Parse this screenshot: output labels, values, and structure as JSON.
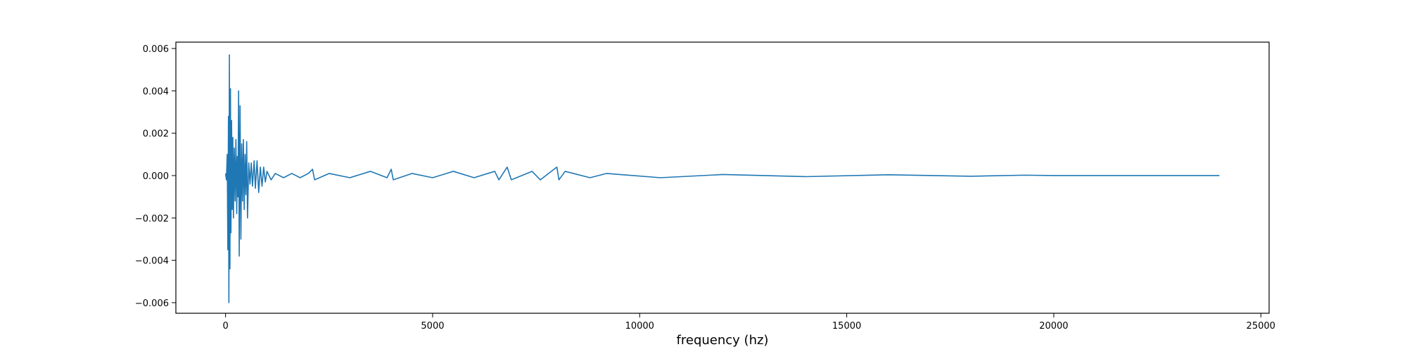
{
  "chart_data": {
    "type": "line",
    "title": "",
    "xlabel": "frequency (hz)",
    "ylabel": "",
    "xlim": [
      -1200,
      25200
    ],
    "ylim": [
      -0.0065,
      0.0063
    ],
    "xticks": [
      0,
      5000,
      10000,
      15000,
      20000,
      25000
    ],
    "xtick_labels": [
      "0",
      "5000",
      "10000",
      "15000",
      "20000",
      "25000"
    ],
    "yticks": [
      -0.006,
      -0.004,
      -0.002,
      0.0,
      0.002,
      0.004,
      0.006
    ],
    "ytick_labels": [
      "−0.006",
      "−0.004",
      "−0.002",
      "0.000",
      "0.002",
      "0.004",
      "0.006"
    ],
    "grid": false,
    "legend": "none",
    "series": [
      {
        "color": "#1f77b4",
        "peaks": [
          [
            0,
            0.0001
          ],
          [
            20,
            -0.0002
          ],
          [
            40,
            0.001
          ],
          [
            55,
            -0.0035
          ],
          [
            70,
            0.0028
          ],
          [
            80,
            -0.006
          ],
          [
            92,
            0.0057
          ],
          [
            105,
            -0.0044
          ],
          [
            118,
            0.0041
          ],
          [
            130,
            -0.0027
          ],
          [
            145,
            0.0026
          ],
          [
            160,
            -0.0016
          ],
          [
            175,
            0.0018
          ],
          [
            190,
            -0.002
          ],
          [
            210,
            0.0013
          ],
          [
            230,
            -0.0012
          ],
          [
            250,
            0.0017
          ],
          [
            270,
            -0.0018
          ],
          [
            285,
            0.0009
          ],
          [
            300,
            -0.001
          ],
          [
            315,
            0.004
          ],
          [
            330,
            -0.0038
          ],
          [
            350,
            0.0033
          ],
          [
            370,
            -0.003
          ],
          [
            390,
            0.0015
          ],
          [
            410,
            -0.0012
          ],
          [
            430,
            0.0017
          ],
          [
            450,
            -0.0016
          ],
          [
            470,
            0.001
          ],
          [
            490,
            -0.0009
          ],
          [
            510,
            0.0016
          ],
          [
            530,
            -0.002
          ],
          [
            560,
            0.0006
          ],
          [
            590,
            -0.0004
          ],
          [
            620,
            0.0006
          ],
          [
            650,
            -0.0005
          ],
          [
            690,
            0.0007
          ],
          [
            720,
            -0.0006
          ],
          [
            760,
            0.0007
          ],
          [
            800,
            -0.0008
          ],
          [
            840,
            0.0004
          ],
          [
            880,
            -0.0005
          ],
          [
            920,
            0.0004
          ],
          [
            960,
            -0.0003
          ],
          [
            1000,
            0.0002
          ],
          [
            1100,
            -0.0002
          ],
          [
            1200,
            0.0001
          ],
          [
            1400,
            -0.0001
          ],
          [
            1600,
            0.0001
          ],
          [
            1800,
            -0.0001
          ],
          [
            2000,
            0.0001
          ],
          [
            2100,
            0.0003
          ],
          [
            2150,
            -0.0002
          ],
          [
            2500,
            0.0001
          ],
          [
            3000,
            -0.0001
          ],
          [
            3500,
            0.0002
          ],
          [
            3900,
            -0.0001
          ],
          [
            4000,
            0.0003
          ],
          [
            4050,
            -0.0002
          ],
          [
            4500,
            0.0001
          ],
          [
            5000,
            -0.0001
          ],
          [
            5500,
            0.0002
          ],
          [
            6000,
            -0.0001
          ],
          [
            6500,
            0.0002
          ],
          [
            6600,
            -0.0002
          ],
          [
            6800,
            0.0004
          ],
          [
            6900,
            -0.0002
          ],
          [
            7400,
            0.0002
          ],
          [
            7600,
            -0.0002
          ],
          [
            8000,
            0.0004
          ],
          [
            8050,
            -0.0002
          ],
          [
            8200,
            0.0002
          ],
          [
            8800,
            -0.0001
          ],
          [
            9200,
            0.0001
          ],
          [
            10500,
            -0.0001
          ],
          [
            12000,
            5e-05
          ],
          [
            14000,
            -5e-05
          ],
          [
            16000,
            4e-05
          ],
          [
            18000,
            -3e-05
          ],
          [
            19300,
            2e-05
          ],
          [
            20000,
            0.0
          ],
          [
            24000,
            0.0
          ]
        ]
      }
    ]
  }
}
